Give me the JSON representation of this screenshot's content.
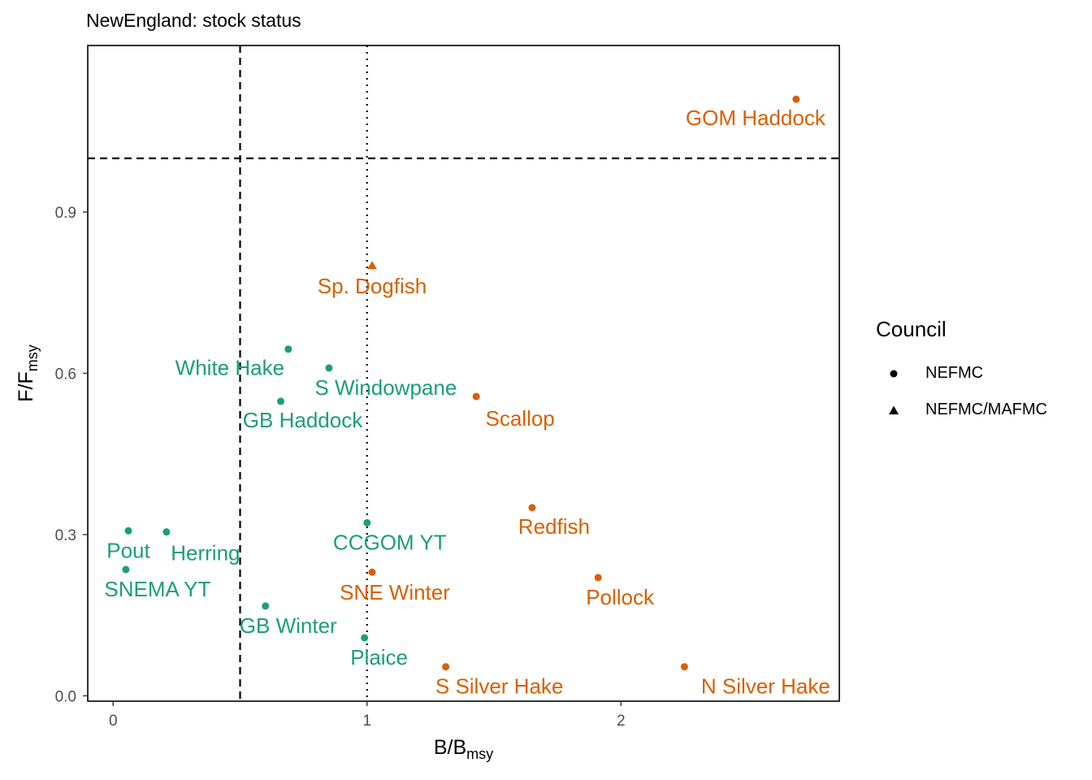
{
  "chart_data": {
    "type": "scatter",
    "title": "NewEngland: stock status",
    "xlabel": {
      "main": "B/B",
      "sub": "msy"
    },
    "ylabel": {
      "main": "F/F",
      "sub": "msy"
    },
    "xlim": [
      -0.1,
      2.86
    ],
    "ylim": [
      -0.01,
      1.21
    ],
    "x_ticks": [
      0,
      1,
      2
    ],
    "x_tick_labels": [
      "0",
      "1",
      "2"
    ],
    "y_ticks": [
      0.0,
      0.3,
      0.6,
      0.9
    ],
    "y_tick_labels": [
      "0.0",
      "0.3",
      "0.6",
      "0.9"
    ],
    "reference_lines": [
      {
        "axis": "x",
        "value": 0.5,
        "style": "dashed"
      },
      {
        "axis": "x",
        "value": 1.0,
        "style": "dotted"
      },
      {
        "axis": "y",
        "value": 1.0,
        "style": "dashed"
      }
    ],
    "colors": {
      "in_bounds": "#1b9e77",
      "out_of_bounds": "#d95f02"
    },
    "points": [
      {
        "name": "GOM Haddock",
        "x": 2.69,
        "y": 1.11,
        "council": "NEFMC",
        "status": "out_of_bounds"
      },
      {
        "name": "Sp. Dogfish",
        "x": 1.02,
        "y": 0.8,
        "council": "NEFMC/MAFMC",
        "status": "out_of_bounds"
      },
      {
        "name": "White Hake",
        "x": 0.69,
        "y": 0.645,
        "council": "NEFMC",
        "status": "in_bounds"
      },
      {
        "name": "S Windowpane",
        "x": 0.85,
        "y": 0.61,
        "council": "NEFMC",
        "status": "in_bounds"
      },
      {
        "name": "GB Haddock",
        "x": 0.66,
        "y": 0.548,
        "council": "NEFMC",
        "status": "in_bounds"
      },
      {
        "name": "Scallop",
        "x": 1.43,
        "y": 0.557,
        "council": "NEFMC",
        "status": "out_of_bounds"
      },
      {
        "name": "Redfish",
        "x": 1.65,
        "y": 0.35,
        "council": "NEFMC",
        "status": "out_of_bounds"
      },
      {
        "name": "CCGOM YT",
        "x": 1.0,
        "y": 0.322,
        "council": "NEFMC",
        "status": "in_bounds"
      },
      {
        "name": "Pout",
        "x": 0.06,
        "y": 0.307,
        "council": "NEFMC",
        "status": "in_bounds"
      },
      {
        "name": "Herring",
        "x": 0.21,
        "y": 0.305,
        "council": "NEFMC",
        "status": "in_bounds"
      },
      {
        "name": "SNEMA YT",
        "x": 0.05,
        "y": 0.235,
        "council": "NEFMC",
        "status": "in_bounds"
      },
      {
        "name": "SNE Winter",
        "x": 1.02,
        "y": 0.23,
        "council": "NEFMC",
        "status": "out_of_bounds"
      },
      {
        "name": "Pollock",
        "x": 1.91,
        "y": 0.22,
        "council": "NEFMC",
        "status": "out_of_bounds"
      },
      {
        "name": "GB Winter",
        "x": 0.6,
        "y": 0.167,
        "council": "NEFMC",
        "status": "in_bounds"
      },
      {
        "name": "Plaice",
        "x": 0.99,
        "y": 0.108,
        "council": "NEFMC",
        "status": "in_bounds"
      },
      {
        "name": "S Silver Hake",
        "x": 1.31,
        "y": 0.054,
        "council": "NEFMC",
        "status": "out_of_bounds"
      },
      {
        "name": "N Silver Hake",
        "x": 2.25,
        "y": 0.054,
        "council": "NEFMC",
        "status": "out_of_bounds"
      }
    ],
    "legend": {
      "title": "Council",
      "position": "right",
      "entries": [
        {
          "label": "NEFMC",
          "shape": "circle"
        },
        {
          "label": "NEFMC/MAFMC",
          "shape": "triangle"
        }
      ]
    }
  }
}
